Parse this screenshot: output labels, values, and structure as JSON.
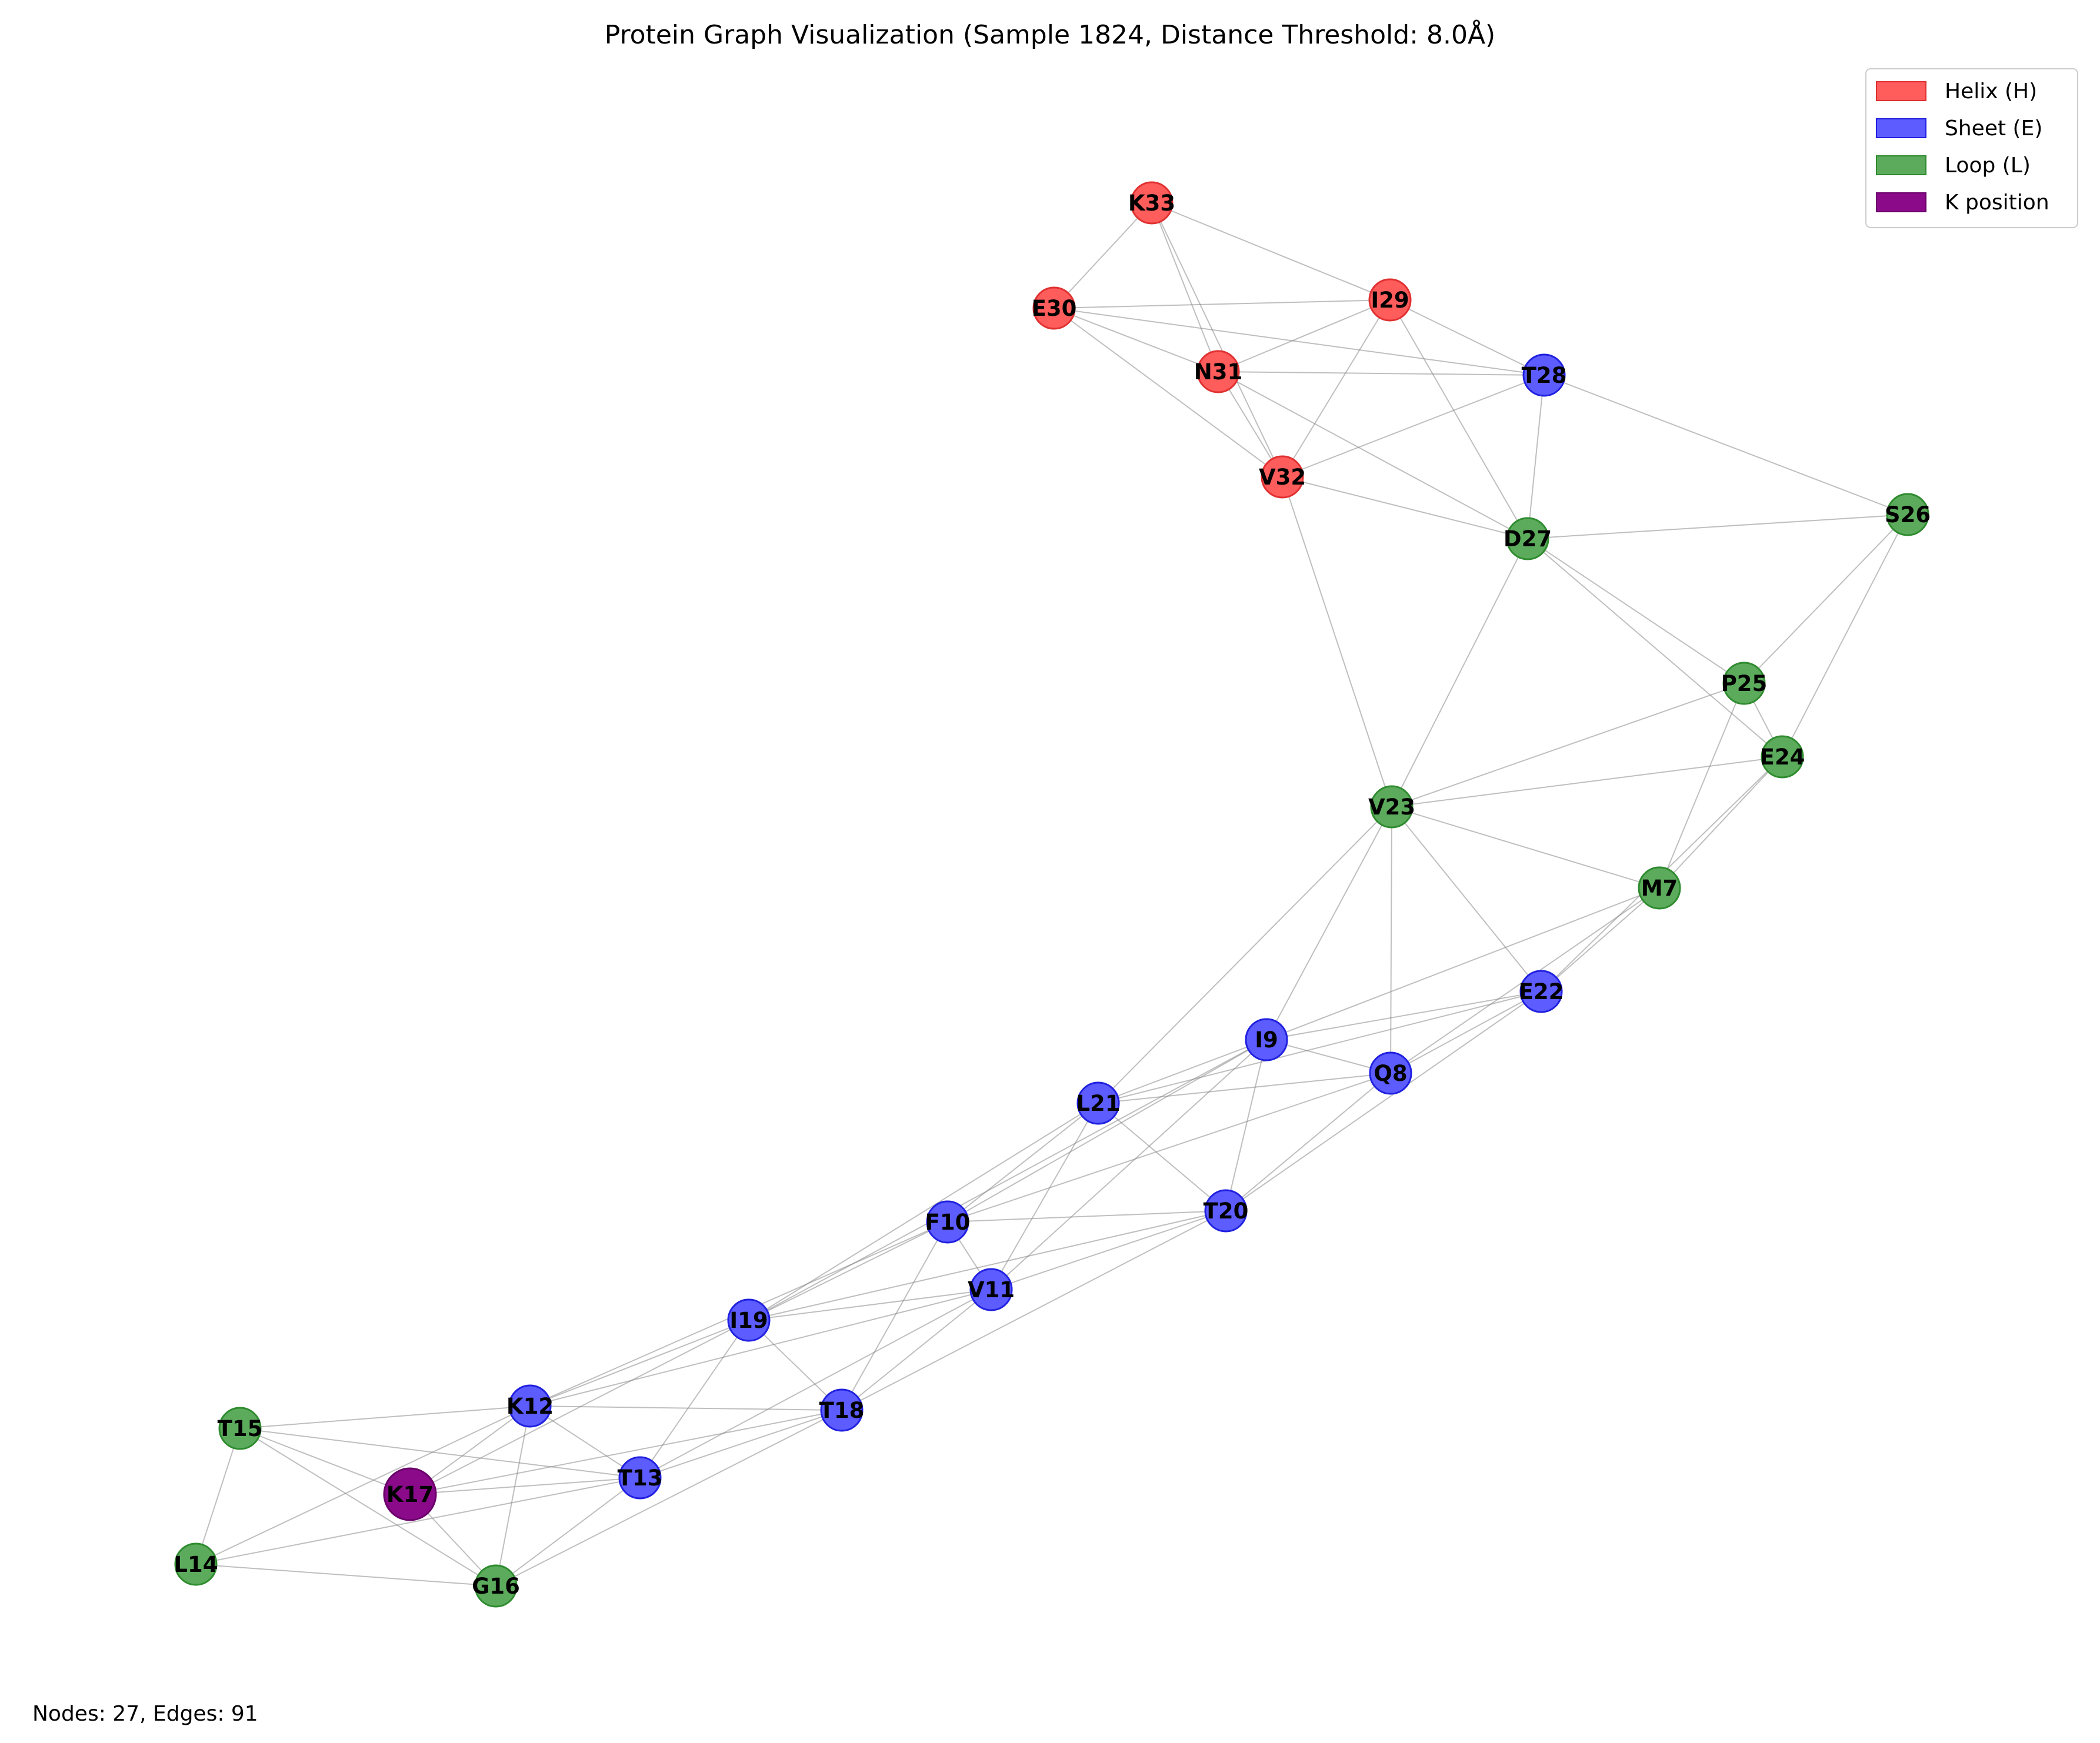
{
  "title": "Protein Graph Visualization (Sample 1824, Distance Threshold: 8.0Å)",
  "footer": "Nodes: 27, Edges: 91",
  "colors": {
    "H": "#ff5c5c",
    "E": "#5c5cff",
    "L": "#5cab5c",
    "K": "#8a0a8a",
    "H_stroke": "#e03030",
    "E_stroke": "#2020e0",
    "L_stroke": "#2e8b2e",
    "K_stroke": "#6a006a",
    "edge": "#808080"
  },
  "legend": [
    {
      "key": "H",
      "label": "Helix (H)"
    },
    {
      "key": "E",
      "label": "Sheet (E)"
    },
    {
      "key": "L",
      "label": "Loop (L)"
    },
    {
      "key": "K",
      "label": "K position"
    }
  ],
  "nodes": [
    {
      "id": "M7",
      "type": "L"
    },
    {
      "id": "Q8",
      "type": "E"
    },
    {
      "id": "I9",
      "type": "E"
    },
    {
      "id": "F10",
      "type": "E"
    },
    {
      "id": "V11",
      "type": "E"
    },
    {
      "id": "K12",
      "type": "E"
    },
    {
      "id": "T13",
      "type": "E"
    },
    {
      "id": "L14",
      "type": "L"
    },
    {
      "id": "T15",
      "type": "L"
    },
    {
      "id": "G16",
      "type": "L"
    },
    {
      "id": "K17",
      "type": "K"
    },
    {
      "id": "T18",
      "type": "E"
    },
    {
      "id": "I19",
      "type": "E"
    },
    {
      "id": "T20",
      "type": "E"
    },
    {
      "id": "L21",
      "type": "E"
    },
    {
      "id": "E22",
      "type": "E"
    },
    {
      "id": "V23",
      "type": "L"
    },
    {
      "id": "E24",
      "type": "L"
    },
    {
      "id": "P25",
      "type": "L"
    },
    {
      "id": "S26",
      "type": "L"
    },
    {
      "id": "D27",
      "type": "L"
    },
    {
      "id": "T28",
      "type": "E"
    },
    {
      "id": "I29",
      "type": "H"
    },
    {
      "id": "E30",
      "type": "H"
    },
    {
      "id": "N31",
      "type": "H"
    },
    {
      "id": "V32",
      "type": "H"
    },
    {
      "id": "K33",
      "type": "H"
    }
  ],
  "edges": [
    [
      "K33",
      "E30"
    ],
    [
      "K33",
      "I29"
    ],
    [
      "K33",
      "N31"
    ],
    [
      "K33",
      "V32"
    ],
    [
      "E30",
      "I29"
    ],
    [
      "E30",
      "N31"
    ],
    [
      "E30",
      "T28"
    ],
    [
      "E30",
      "V32"
    ],
    [
      "I29",
      "N31"
    ],
    [
      "I29",
      "T28"
    ],
    [
      "I29",
      "V32"
    ],
    [
      "I29",
      "D27"
    ],
    [
      "N31",
      "T28"
    ],
    [
      "N31",
      "V32"
    ],
    [
      "N31",
      "D27"
    ],
    [
      "V32",
      "T28"
    ],
    [
      "V32",
      "D27"
    ],
    [
      "V32",
      "V23"
    ],
    [
      "T28",
      "D27"
    ],
    [
      "T28",
      "S26"
    ],
    [
      "D27",
      "S26"
    ],
    [
      "D27",
      "P25"
    ],
    [
      "D27",
      "E24"
    ],
    [
      "D27",
      "V23"
    ],
    [
      "S26",
      "P25"
    ],
    [
      "S26",
      "E24"
    ],
    [
      "P25",
      "E24"
    ],
    [
      "P25",
      "V23"
    ],
    [
      "P25",
      "M7"
    ],
    [
      "E24",
      "V23"
    ],
    [
      "E24",
      "M7"
    ],
    [
      "E24",
      "E22"
    ],
    [
      "V23",
      "M7"
    ],
    [
      "V23",
      "E22"
    ],
    [
      "V23",
      "Q8"
    ],
    [
      "V23",
      "I9"
    ],
    [
      "V23",
      "L21"
    ],
    [
      "M7",
      "E22"
    ],
    [
      "M7",
      "Q8"
    ],
    [
      "M7",
      "I9"
    ],
    [
      "E22",
      "Q8"
    ],
    [
      "E22",
      "I9"
    ],
    [
      "E22",
      "L21"
    ],
    [
      "E22",
      "T20"
    ],
    [
      "Q8",
      "I9"
    ],
    [
      "Q8",
      "L21"
    ],
    [
      "Q8",
      "T20"
    ],
    [
      "Q8",
      "F10"
    ],
    [
      "I9",
      "L21"
    ],
    [
      "I9",
      "F10"
    ],
    [
      "I9",
      "T20"
    ],
    [
      "I9",
      "V11"
    ],
    [
      "I9",
      "I19"
    ],
    [
      "L21",
      "F10"
    ],
    [
      "L21",
      "T20"
    ],
    [
      "L21",
      "V11"
    ],
    [
      "L21",
      "I19"
    ],
    [
      "F10",
      "T20"
    ],
    [
      "F10",
      "V11"
    ],
    [
      "F10",
      "I19"
    ],
    [
      "F10",
      "T18"
    ],
    [
      "F10",
      "K12"
    ],
    [
      "T20",
      "V11"
    ],
    [
      "T20",
      "I19"
    ],
    [
      "T20",
      "T18"
    ],
    [
      "V11",
      "I19"
    ],
    [
      "V11",
      "T18"
    ],
    [
      "V11",
      "K12"
    ],
    [
      "V11",
      "T13"
    ],
    [
      "I19",
      "K12"
    ],
    [
      "I19",
      "T18"
    ],
    [
      "I19",
      "T13"
    ],
    [
      "I19",
      "K17"
    ],
    [
      "K12",
      "T18"
    ],
    [
      "K12",
      "T13"
    ],
    [
      "K12",
      "T15"
    ],
    [
      "K12",
      "K17"
    ],
    [
      "K12",
      "G16"
    ],
    [
      "K12",
      "L14"
    ],
    [
      "T18",
      "T13"
    ],
    [
      "T18",
      "K17"
    ],
    [
      "T18",
      "G16"
    ],
    [
      "T13",
      "T15"
    ],
    [
      "T13",
      "K17"
    ],
    [
      "T13",
      "G16"
    ],
    [
      "T13",
      "L14"
    ],
    [
      "T15",
      "L14"
    ],
    [
      "T15",
      "K17"
    ],
    [
      "T15",
      "G16"
    ],
    [
      "L14",
      "G16"
    ],
    [
      "K17",
      "G16"
    ]
  ]
}
